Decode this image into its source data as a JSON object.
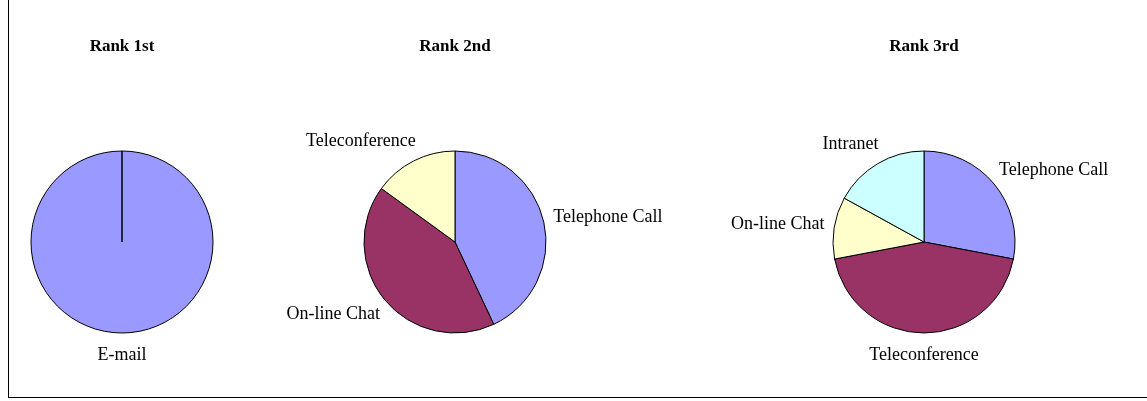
{
  "chart_data": [
    {
      "type": "pie",
      "title": "Rank 1st",
      "categories": [
        "E-mail"
      ],
      "values": [
        100
      ],
      "colors": [
        "#9999ff"
      ]
    },
    {
      "type": "pie",
      "title": "Rank 2nd",
      "categories": [
        "Telephone Call",
        "On-line Chat",
        "Teleconference"
      ],
      "values": [
        43,
        42,
        15
      ],
      "colors": [
        "#9999ff",
        "#993366",
        "#ffffcc"
      ]
    },
    {
      "type": "pie",
      "title": "Rank 3rd",
      "categories": [
        "Telephone Call",
        "Teleconference",
        "On-line Chat",
        "Intranet"
      ],
      "values": [
        28,
        44,
        11,
        17
      ],
      "colors": [
        "#9999ff",
        "#993366",
        "#ffffcc",
        "#ccffff"
      ]
    }
  ]
}
